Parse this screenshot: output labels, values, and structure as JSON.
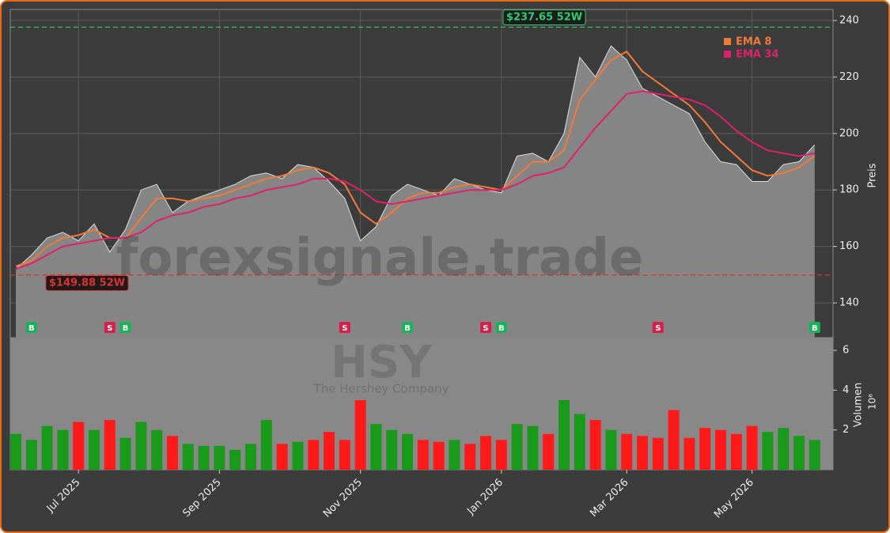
{
  "chart_data": {
    "type": "area",
    "watermark": "forexsignale.trade",
    "ticker": "HSY",
    "company": "The Hershey Company",
    "y_label": "Preis",
    "categories": [
      null,
      null,
      null,
      null,
      "Jul 2025",
      null,
      null,
      null,
      null,
      null,
      null,
      null,
      null,
      "Sep 2025",
      null,
      null,
      null,
      null,
      null,
      null,
      null,
      null,
      "Nov 2025",
      null,
      null,
      null,
      null,
      null,
      null,
      null,
      null,
      "Jan 2026",
      null,
      null,
      null,
      null,
      null,
      null,
      null,
      "Mar 2026",
      null,
      null,
      null,
      null,
      null,
      null,
      null,
      "May 2026",
      null,
      null,
      null,
      null
    ],
    "close": [
      152,
      157,
      163,
      165,
      162,
      168,
      158,
      166,
      180,
      182,
      172,
      176,
      178,
      180,
      182,
      185,
      186,
      184,
      189,
      188,
      183,
      177,
      162,
      167,
      178,
      182,
      180,
      178,
      184,
      182,
      180,
      179,
      192,
      193,
      190,
      200,
      227,
      220,
      231,
      226,
      216,
      213,
      210,
      207,
      197,
      190,
      189,
      183,
      183,
      189,
      190,
      196
    ],
    "area_color": "#858585",
    "series": [
      {
        "name": "EMA 8",
        "color": "#f07a3a",
        "values": [
          153,
          155,
          160,
          163,
          164,
          166,
          163,
          163,
          170,
          177,
          177,
          176,
          177,
          178,
          180,
          182,
          184,
          185,
          187,
          188,
          186,
          182,
          172,
          168,
          172,
          177,
          179,
          179,
          181,
          182,
          181,
          180,
          185,
          190,
          190,
          194,
          212,
          219,
          226,
          229,
          222,
          218,
          214,
          210,
          204,
          197,
          192,
          187,
          185,
          186,
          188,
          192
        ]
      },
      {
        "name": "EMA 34",
        "color": "#e0206a",
        "values": [
          152,
          154,
          157,
          160,
          161,
          162,
          163,
          163,
          165,
          169,
          171,
          172,
          174,
          175,
          177,
          178,
          180,
          181,
          182,
          184,
          184,
          183,
          180,
          176,
          175,
          176,
          177,
          178,
          179,
          180,
          180,
          180,
          182,
          185,
          186,
          188,
          195,
          202,
          208,
          214,
          215,
          214,
          213,
          212,
          210,
          206,
          201,
          197,
          194,
          193,
          192,
          193
        ]
      }
    ],
    "signals": [
      null,
      "B",
      null,
      null,
      null,
      null,
      "S",
      "B",
      null,
      null,
      null,
      null,
      null,
      null,
      null,
      null,
      null,
      null,
      null,
      null,
      null,
      "S",
      null,
      null,
      null,
      "B",
      null,
      null,
      null,
      null,
      "S",
      "B",
      null,
      null,
      null,
      null,
      null,
      null,
      null,
      null,
      null,
      "S",
      null,
      null,
      null,
      null,
      null,
      null,
      null,
      null,
      null,
      "B"
    ],
    "high": {
      "value": 237.65,
      "label": "$237.65 52W",
      "color": "#2ecc71"
    },
    "low": {
      "value": 149.88,
      "label": "$149.88 52W",
      "color": "#e03030"
    },
    "ylim": [
      127.7,
      243.9
    ],
    "yticks": [
      140,
      160,
      180,
      200,
      220,
      240
    ],
    "grid": true,
    "volume": {
      "y_label": "Volumen",
      "exponent": "10⁶",
      "values": [
        1.8,
        1.5,
        2.2,
        2.0,
        2.4,
        2.0,
        2.5,
        1.6,
        2.4,
        2.0,
        1.7,
        1.3,
        1.2,
        1.2,
        1.0,
        1.3,
        2.5,
        1.3,
        1.4,
        1.5,
        1.9,
        1.5,
        3.5,
        2.3,
        2.0,
        1.8,
        1.5,
        1.4,
        1.5,
        1.3,
        1.7,
        1.5,
        2.3,
        2.2,
        1.8,
        3.5,
        2.8,
        2.5,
        2.0,
        1.8,
        1.7,
        1.6,
        3.0,
        1.6,
        2.1,
        2.0,
        1.8,
        2.2,
        1.9,
        2.1,
        1.7,
        1.5
      ],
      "colors": [
        "#1a9a1a",
        "#1a9a1a",
        "#1a9a1a",
        "#1a9a1a",
        "#ff1a1a",
        "#1a9a1a",
        "#ff1a1a",
        "#1a9a1a",
        "#1a9a1a",
        "#1a9a1a",
        "#ff1a1a",
        "#1a9a1a",
        "#1a9a1a",
        "#1a9a1a",
        "#1a9a1a",
        "#1a9a1a",
        "#1a9a1a",
        "#ff1a1a",
        "#1a9a1a",
        "#ff1a1a",
        "#ff1a1a",
        "#ff1a1a",
        "#ff1a1a",
        "#1a9a1a",
        "#1a9a1a",
        "#1a9a1a",
        "#ff1a1a",
        "#ff1a1a",
        "#1a9a1a",
        "#ff1a1a",
        "#ff1a1a",
        "#ff1a1a",
        "#1a9a1a",
        "#1a9a1a",
        "#ff1a1a",
        "#1a9a1a",
        "#1a9a1a",
        "#ff1a1a",
        "#1a9a1a",
        "#ff1a1a",
        "#ff1a1a",
        "#ff1a1a",
        "#ff1a1a",
        "#ff1a1a",
        "#ff1a1a",
        "#ff1a1a",
        "#ff1a1a",
        "#ff1a1a",
        "#1a9a1a",
        "#1a9a1a",
        "#1a9a1a",
        "#1a9a1a"
      ],
      "ylim": [
        0,
        6.6
      ],
      "yticks": [
        2,
        4,
        6
      ]
    }
  }
}
